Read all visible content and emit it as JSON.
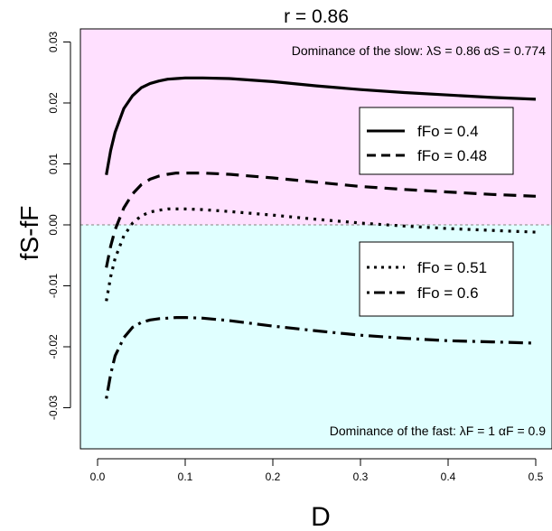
{
  "chart_data": {
    "type": "line",
    "title": "r = 0.86",
    "xlabel": "D",
    "ylabel": "fS-fF",
    "xlim": [
      0.0,
      0.5
    ],
    "ylim": [
      -0.037,
      0.032
    ],
    "x_ticks": [
      "0.0",
      "0.1",
      "0.2",
      "0.3",
      "0.4",
      "0.5"
    ],
    "y_ticks": [
      "-0.03",
      "-0.02",
      "-0.01",
      "0.00",
      "0.01",
      "0.02",
      "0.03"
    ],
    "regions": {
      "upper": {
        "color": "#ffe0ff",
        "label": "Dominance of the slow:  λS = 0.86   αS = 0.774"
      },
      "lower": {
        "color": "#e0ffff",
        "label": "Dominance of the fast:  λF = 1   αF = 0.9"
      }
    },
    "zero_line": {
      "y": 0.0,
      "color": "#999999"
    },
    "legend_upper": [
      "fFo = 0.4",
      "fFo = 0.48"
    ],
    "legend_lower": [
      "fFo = 0.51",
      "fFo = 0.6"
    ],
    "series": [
      {
        "name": "fFo = 0.4",
        "style": "solid",
        "x": [
          0.01,
          0.015,
          0.02,
          0.03,
          0.04,
          0.05,
          0.06,
          0.07,
          0.08,
          0.09,
          0.1,
          0.12,
          0.15,
          0.2,
          0.25,
          0.3,
          0.35,
          0.4,
          0.45,
          0.5
        ],
        "y": [
          0.0082,
          0.0122,
          0.0152,
          0.0191,
          0.0212,
          0.0225,
          0.0232,
          0.0236,
          0.0239,
          0.024,
          0.0241,
          0.0241,
          0.024,
          0.0235,
          0.0228,
          0.0222,
          0.0217,
          0.0213,
          0.0209,
          0.0206
        ]
      },
      {
        "name": "fFo = 0.48",
        "style": "dashed",
        "x": [
          0.01,
          0.015,
          0.02,
          0.03,
          0.04,
          0.05,
          0.06,
          0.07,
          0.08,
          0.09,
          0.1,
          0.12,
          0.15,
          0.2,
          0.25,
          0.3,
          0.35,
          0.4,
          0.45,
          0.5
        ],
        "y": [
          -0.007,
          -0.0035,
          -0.0008,
          0.0028,
          0.0051,
          0.0066,
          0.0075,
          0.008,
          0.0083,
          0.0085,
          0.0085,
          0.0085,
          0.0083,
          0.0077,
          0.007,
          0.0063,
          0.0058,
          0.0054,
          0.005,
          0.0047
        ]
      },
      {
        "name": "fFo = 0.51",
        "style": "dotted",
        "x": [
          0.01,
          0.015,
          0.02,
          0.03,
          0.04,
          0.05,
          0.06,
          0.07,
          0.08,
          0.09,
          0.1,
          0.12,
          0.15,
          0.2,
          0.25,
          0.3,
          0.35,
          0.4,
          0.45,
          0.5
        ],
        "y": [
          -0.0125,
          -0.0085,
          -0.0055,
          -0.0018,
          0.0003,
          0.0015,
          0.0021,
          0.0024,
          0.0026,
          0.0026,
          0.0026,
          0.0025,
          0.0022,
          0.0016,
          0.0009,
          0.0003,
          -0.0002,
          -0.0006,
          -0.0009,
          -0.0012
        ]
      },
      {
        "name": "fFo = 0.6",
        "style": "dotdash",
        "x": [
          0.01,
          0.015,
          0.02,
          0.03,
          0.04,
          0.05,
          0.06,
          0.07,
          0.08,
          0.09,
          0.1,
          0.12,
          0.15,
          0.2,
          0.25,
          0.3,
          0.35,
          0.4,
          0.45,
          0.5
        ],
        "y": [
          -0.0285,
          -0.0245,
          -0.0215,
          -0.0185,
          -0.0168,
          -0.016,
          -0.0156,
          -0.0154,
          -0.0153,
          -0.0152,
          -0.0152,
          -0.0153,
          -0.0157,
          -0.0166,
          -0.0174,
          -0.0181,
          -0.0186,
          -0.019,
          -0.0192,
          -0.0194
        ]
      }
    ]
  }
}
